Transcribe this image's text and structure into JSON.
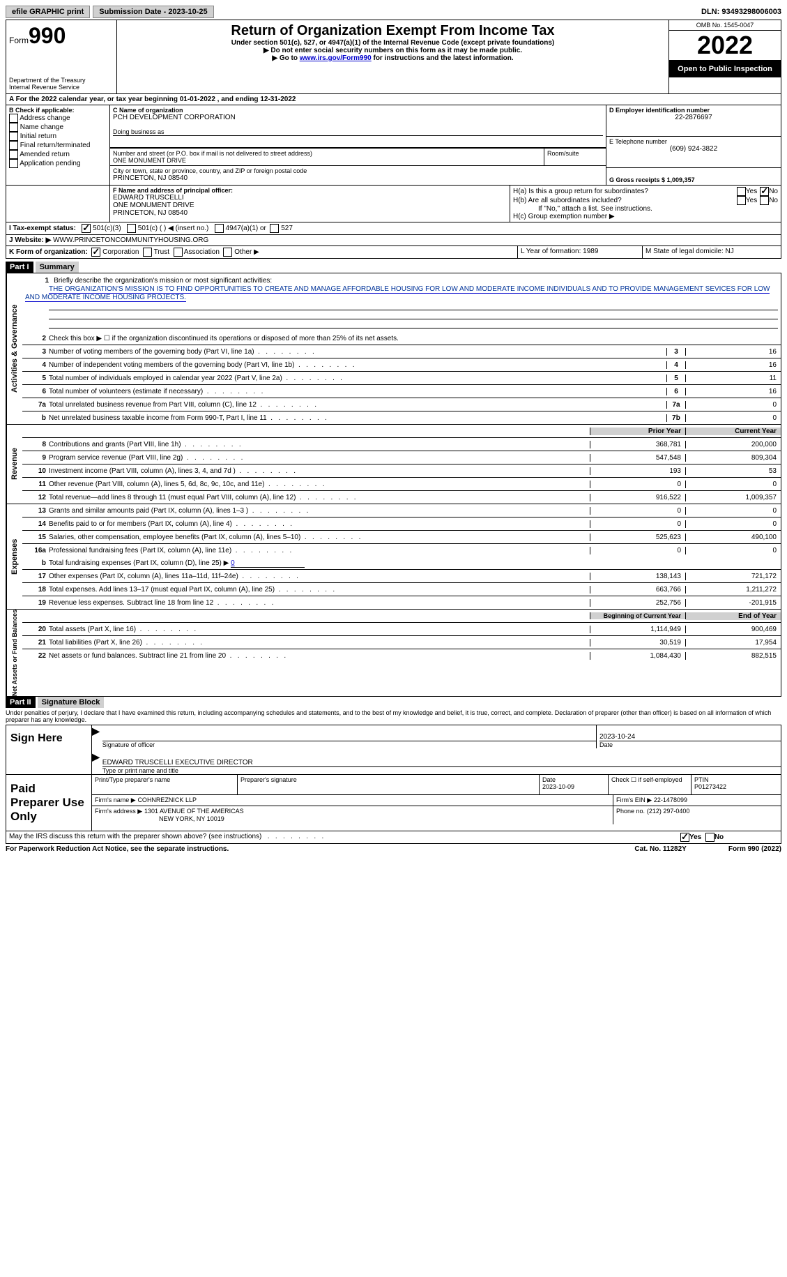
{
  "topbar": {
    "efile": "efile GRAPHIC print",
    "submission_label": "Submission Date - 2023-10-25",
    "dln_label": "DLN: 93493298006003"
  },
  "header": {
    "form_prefix": "Form",
    "form_num": "990",
    "dept": "Department of the Treasury",
    "irs": "Internal Revenue Service",
    "title": "Return of Organization Exempt From Income Tax",
    "sub1": "Under section 501(c), 527, or 4947(a)(1) of the Internal Revenue Code (except private foundations)",
    "sub2": "▶ Do not enter social security numbers on this form as it may be made public.",
    "sub3_a": "▶ Go to ",
    "sub3_link": "www.irs.gov/Form990",
    "sub3_b": " for instructions and the latest information.",
    "omb": "OMB No. 1545-0047",
    "year": "2022",
    "open": "Open to Public Inspection"
  },
  "sectionA": {
    "a_line": "A For the 2022 calendar year, or tax year beginning 01-01-2022   , and ending 12-31-2022",
    "b_label": "B Check if applicable:",
    "b_opts": [
      "Address change",
      "Name change",
      "Initial return",
      "Final return/terminated",
      "Amended return",
      "Application pending"
    ],
    "c_label": "C Name of organization",
    "c_name": "PCH DEVELOPMENT CORPORATION",
    "dba": "Doing business as",
    "addr_label": "Number and street (or P.O. box if mail is not delivered to street address)",
    "room": "Room/suite",
    "addr": "ONE MONUMENT DRIVE",
    "city_label": "City or town, state or province, country, and ZIP or foreign postal code",
    "city": "PRINCETON, NJ  08540",
    "d_label": "D Employer identification number",
    "d_val": "22-2876697",
    "e_label": "E Telephone number",
    "e_val": "(609) 924-3822",
    "g_label": "G Gross receipts $ 1,009,357",
    "f_label": "F  Name and address of principal officer:",
    "f_name": "EDWARD TRUSCELLI",
    "f_addr1": "ONE MONUMENT DRIVE",
    "f_addr2": "PRINCETON, NJ  08540",
    "ha": "H(a)  Is this a group return for subordinates?",
    "hb": "H(b)  Are all subordinates included?",
    "hb_note": "If \"No,\" attach a list. See instructions.",
    "hc": "H(c)  Group exemption number ▶",
    "yes": "Yes",
    "no": "No",
    "i_label": "I  Tax-exempt status:",
    "i_501c3": "501(c)(3)",
    "i_501c": "501(c) (  ) ◀ (insert no.)",
    "i_4947": "4947(a)(1) or",
    "i_527": "527",
    "j_label": "J  Website: ▶",
    "j_val": "WWW.PRINCETONCOMMUNITYHOUSING.ORG",
    "k_label": "K Form of organization:",
    "k_opts": [
      "Corporation",
      "Trust",
      "Association",
      "Other ▶"
    ],
    "l_label": "L Year of formation: 1989",
    "m_label": "M State of legal domicile: NJ"
  },
  "part1": {
    "header": "Part I",
    "title": "Summary",
    "side1": "Activities & Governance",
    "side2": "Revenue",
    "side3": "Expenses",
    "side4": "Net Assets or Fund Balances",
    "line1_label": "Briefly describe the organization's mission or most significant activities:",
    "line1_text": "THE ORGANIZATION'S MISSION IS TO FIND OPPORTUNITIES TO CREATE AND MANAGE AFFORDABLE HOUSING FOR LOW AND MODERATE INCOME INDIVIDUALS AND TO PROVIDE MANAGEMENT SEVICES FOR LOW AND MODERATE INCOME HOUSING PROJECTS.",
    "line2": "Check this box ▶ ☐ if the organization discontinued its operations or disposed of more than 25% of its net assets.",
    "rows_ag": [
      {
        "n": "3",
        "d": "Number of voting members of the governing body (Part VI, line 1a)",
        "box": "3",
        "v": "16"
      },
      {
        "n": "4",
        "d": "Number of independent voting members of the governing body (Part VI, line 1b)",
        "box": "4",
        "v": "16"
      },
      {
        "n": "5",
        "d": "Total number of individuals employed in calendar year 2022 (Part V, line 2a)",
        "box": "5",
        "v": "11"
      },
      {
        "n": "6",
        "d": "Total number of volunteers (estimate if necessary)",
        "box": "6",
        "v": "16"
      },
      {
        "n": "7a",
        "d": "Total unrelated business revenue from Part VIII, column (C), line 12",
        "box": "7a",
        "v": "0"
      },
      {
        "n": "b",
        "d": "Net unrelated business taxable income from Form 990-T, Part I, line 11",
        "box": "7b",
        "v": "0"
      }
    ],
    "py_header": "Prior Year",
    "cy_header": "Current Year",
    "rows_rev": [
      {
        "n": "8",
        "d": "Contributions and grants (Part VIII, line 1h)",
        "py": "368,781",
        "cy": "200,000"
      },
      {
        "n": "9",
        "d": "Program service revenue (Part VIII, line 2g)",
        "py": "547,548",
        "cy": "809,304"
      },
      {
        "n": "10",
        "d": "Investment income (Part VIII, column (A), lines 3, 4, and 7d )",
        "py": "193",
        "cy": "53"
      },
      {
        "n": "11",
        "d": "Other revenue (Part VIII, column (A), lines 5, 6d, 8c, 9c, 10c, and 11e)",
        "py": "0",
        "cy": "0"
      },
      {
        "n": "12",
        "d": "Total revenue—add lines 8 through 11 (must equal Part VIII, column (A), line 12)",
        "py": "916,522",
        "cy": "1,009,357"
      }
    ],
    "rows_exp": [
      {
        "n": "13",
        "d": "Grants and similar amounts paid (Part IX, column (A), lines 1–3 )",
        "py": "0",
        "cy": "0"
      },
      {
        "n": "14",
        "d": "Benefits paid to or for members (Part IX, column (A), line 4)",
        "py": "0",
        "cy": "0"
      },
      {
        "n": "15",
        "d": "Salaries, other compensation, employee benefits (Part IX, column (A), lines 5–10)",
        "py": "525,623",
        "cy": "490,100"
      },
      {
        "n": "16a",
        "d": "Professional fundraising fees (Part IX, column (A), line 11e)",
        "py": "0",
        "cy": "0"
      }
    ],
    "line16b_label": "Total fundraising expenses (Part IX, column (D), line 25) ▶",
    "line16b_val": "0",
    "rows_exp2": [
      {
        "n": "17",
        "d": "Other expenses (Part IX, column (A), lines 11a–11d, 11f–24e)",
        "py": "138,143",
        "cy": "721,172"
      },
      {
        "n": "18",
        "d": "Total expenses. Add lines 13–17 (must equal Part IX, column (A), line 25)",
        "py": "663,766",
        "cy": "1,211,272"
      },
      {
        "n": "19",
        "d": "Revenue less expenses. Subtract line 18 from line 12",
        "py": "252,756",
        "cy": "-201,915"
      }
    ],
    "bcy_header": "Beginning of Current Year",
    "eoy_header": "End of Year",
    "rows_na": [
      {
        "n": "20",
        "d": "Total assets (Part X, line 16)",
        "py": "1,114,949",
        "cy": "900,469"
      },
      {
        "n": "21",
        "d": "Total liabilities (Part X, line 26)",
        "py": "30,519",
        "cy": "17,954"
      },
      {
        "n": "22",
        "d": "Net assets or fund balances. Subtract line 21 from line 20",
        "py": "1,084,430",
        "cy": "882,515"
      }
    ]
  },
  "part2": {
    "header": "Part II",
    "title": "Signature Block",
    "decl": "Under penalties of perjury, I declare that I have examined this return, including accompanying schedules and statements, and to the best of my knowledge and belief, it is true, correct, and complete. Declaration of preparer (other than officer) is based on all information of which preparer has any knowledge.",
    "sign_here": "Sign Here",
    "sig_officer": "Signature of officer",
    "date": "Date",
    "sig_date": "2023-10-24",
    "name_title": "EDWARD TRUSCELLI  EXECUTIVE DIRECTOR",
    "type_name": "Type or print name and title",
    "paid": "Paid Preparer Use Only",
    "pt_name_label": "Print/Type preparer's name",
    "pt_sig_label": "Preparer's signature",
    "pt_date_label": "Date",
    "pt_date": "2023-10-09",
    "pt_check": "Check ☐ if self-employed",
    "ptin_label": "PTIN",
    "ptin": "P01273422",
    "firm_name_label": "Firm's name    ▶",
    "firm_name": "COHNREZNICK LLP",
    "firm_ein_label": "Firm's EIN ▶",
    "firm_ein": "22-1478099",
    "firm_addr_label": "Firm's address ▶",
    "firm_addr1": "1301 AVENUE OF THE AMERICAS",
    "firm_addr2": "NEW YORK, NY  10019",
    "phone_label": "Phone no.",
    "phone": "(212) 297-0400",
    "discuss": "May the IRS discuss this return with the preparer shown above? (see instructions)"
  },
  "footer": {
    "pra": "For Paperwork Reduction Act Notice, see the separate instructions.",
    "cat": "Cat. No. 11282Y",
    "form": "Form 990 (2022)"
  }
}
